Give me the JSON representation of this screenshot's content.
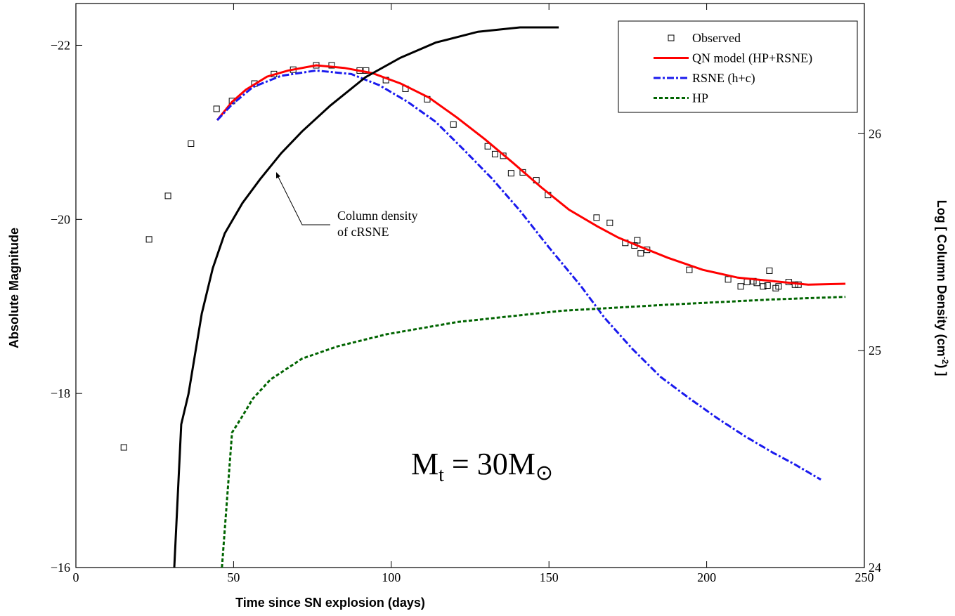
{
  "chart_data": {
    "type": "line",
    "x_label": "Time since SN explosion (days)",
    "y_label": "Absolute Magnitude",
    "y2_label": {
      "text": "Log [ Column Density (cm",
      "sup": "-2",
      "end": ") ]"
    },
    "xlim": [
      0,
      250
    ],
    "xticks": [
      0,
      50,
      100,
      150,
      200,
      250
    ],
    "ylim": [
      -16,
      -22.48
    ],
    "yticks": [
      {
        "value": -16,
        "label": "−16"
      },
      {
        "value": -18,
        "label": "−18"
      },
      {
        "value": -20,
        "label": "−20"
      },
      {
        "value": -22,
        "label": "−22"
      }
    ],
    "y2lim": [
      24,
      26.6
    ],
    "y2ticks": [
      24,
      25,
      26
    ],
    "legend": "upper right",
    "series": [
      {
        "name": "Observed",
        "color": "#000000",
        "style": "markers",
        "x": [
          15.2,
          23.2,
          29.2,
          36.5,
          44.6,
          49.5,
          56.6,
          62.8,
          68.9,
          76.2,
          81.1,
          90.0,
          92.0,
          98.3,
          104.5,
          111.4,
          119.7,
          130.6,
          132.9,
          135.5,
          138.0,
          141.7,
          146.0,
          149.7,
          165.1,
          169.3,
          174.2,
          177.1,
          178.0,
          179.1,
          181.1,
          194.5,
          206.8,
          210.8,
          212.8,
          214.8,
          215.9,
          217.9,
          219.3,
          219.9,
          221.9,
          222.8,
          226.0,
          228.0,
          229.1
        ],
        "values": [
          -17.38,
          -19.77,
          -20.27,
          -20.87,
          -21.27,
          -21.36,
          -21.56,
          -21.67,
          -21.72,
          -21.77,
          -21.77,
          -21.71,
          -21.71,
          -21.6,
          -21.5,
          -21.38,
          -21.09,
          -20.84,
          -20.75,
          -20.73,
          -20.53,
          -20.54,
          -20.45,
          -20.28,
          -20.02,
          -19.96,
          -19.73,
          -19.7,
          -19.76,
          -19.61,
          -19.65,
          -19.42,
          -19.31,
          -19.23,
          -19.28,
          -19.29,
          -19.27,
          -19.23,
          -19.24,
          -19.41,
          -19.21,
          -19.23,
          -19.28,
          -19.25,
          -19.25
        ]
      },
      {
        "name": "QN model (HP+RSNE)",
        "color": "#ff0000",
        "style": "solid",
        "x": [
          44.8,
          49.5,
          53.9,
          60.6,
          67.3,
          76.2,
          85.1,
          94.0,
          103.0,
          111.9,
          120.8,
          129.7,
          138.6,
          147.5,
          156.4,
          165.3,
          172.0,
          178.7,
          187.6,
          198.8,
          209.9,
          221.0,
          232.2,
          244.0
        ],
        "values": [
          -21.14,
          -21.35,
          -21.49,
          -21.64,
          -21.71,
          -21.77,
          -21.74,
          -21.68,
          -21.56,
          -21.4,
          -21.17,
          -20.92,
          -20.65,
          -20.37,
          -20.11,
          -19.92,
          -19.79,
          -19.69,
          -19.56,
          -19.42,
          -19.33,
          -19.29,
          -19.25,
          -19.26
        ]
      },
      {
        "name": "RSNE (h+c)",
        "color": "#1a1aee",
        "style": "dashdot",
        "x": [
          44.8,
          49.5,
          56.1,
          65.1,
          76.2,
          87.3,
          96.3,
          105.2,
          114.1,
          123.0,
          131.9,
          140.8,
          149.7,
          160.2,
          167.6,
          176.5,
          185.4,
          194.3,
          203.2,
          212.1,
          221.0,
          227.7,
          236.2
        ],
        "values": [
          -21.14,
          -21.32,
          -21.52,
          -21.65,
          -21.71,
          -21.67,
          -21.54,
          -21.35,
          -21.12,
          -20.8,
          -20.47,
          -20.1,
          -19.69,
          -19.23,
          -18.87,
          -18.51,
          -18.19,
          -17.95,
          -17.72,
          -17.51,
          -17.32,
          -17.19,
          -17.01
        ]
      },
      {
        "name": "HP",
        "color": "#006400",
        "style": "dashed",
        "x": [
          46.3,
          49.5,
          52.8,
          56.1,
          61.7,
          71.7,
          82.9,
          98.5,
          120.8,
          154.2,
          187.6,
          221.0,
          244.0
        ],
        "values": [
          -16,
          -17.55,
          -17.74,
          -17.94,
          -18.16,
          -18.4,
          -18.54,
          -18.68,
          -18.82,
          -18.95,
          -19.02,
          -19.08,
          -19.11
        ]
      },
      {
        "color": "#000000",
        "style": "solid",
        "axis": "y2",
        "x": [
          31.2,
          33.4,
          35.7,
          39.9,
          43.4,
          47.2,
          52.8,
          58.4,
          65.1,
          71.7,
          80.7,
          91.8,
          102.9,
          114.1,
          127.5,
          140.8,
          153.1
        ],
        "values": [
          24.0,
          24.66,
          24.8,
          25.17,
          25.38,
          25.54,
          25.68,
          25.79,
          25.91,
          26.01,
          26.13,
          26.26,
          26.35,
          26.42,
          26.47,
          26.49,
          26.49
        ]
      }
    ],
    "annotation": {
      "lines": [
        "Column density",
        "of cRSNE"
      ]
    },
    "formula": {
      "base": "M",
      "sub": "t",
      "rest": " = 30M",
      "symbol": "⊙"
    }
  }
}
